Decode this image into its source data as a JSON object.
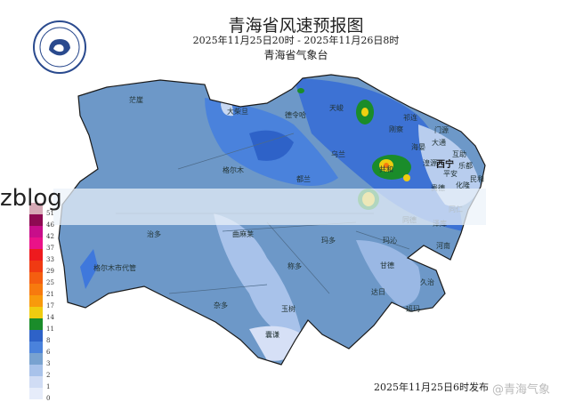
{
  "header": {
    "title": "青海省风速预报图",
    "period": "2025年11月25日20时 - 2025年11月26日8时",
    "organization": "青海省气象台",
    "logo_text": "青海省气象台 1954"
  },
  "places": [
    {
      "name": "茫崖"
    },
    {
      "name": "大柴旦"
    },
    {
      "name": "德令哈"
    },
    {
      "name": "天峻"
    },
    {
      "name": "祁连"
    },
    {
      "name": "门源"
    },
    {
      "name": "刚察"
    },
    {
      "name": "海晏"
    },
    {
      "name": "大通"
    },
    {
      "name": "互助"
    },
    {
      "name": "湟源"
    },
    {
      "name": "西宁"
    },
    {
      "name": "平安"
    },
    {
      "name": "乐都"
    },
    {
      "name": "民和"
    },
    {
      "name": "乌兰"
    },
    {
      "name": "格尔木"
    },
    {
      "name": "都兰"
    },
    {
      "name": "共和"
    },
    {
      "name": "贵德"
    },
    {
      "name": "化隆"
    },
    {
      "name": "同德"
    },
    {
      "name": "泽库"
    },
    {
      "name": "同仁"
    },
    {
      "name": "治多"
    },
    {
      "name": "曲麻莱"
    },
    {
      "name": "玛多"
    },
    {
      "name": "玛沁"
    },
    {
      "name": "河南"
    },
    {
      "name": "甘德"
    },
    {
      "name": "格尔木市代管"
    },
    {
      "name": "称多"
    },
    {
      "name": "杂多"
    },
    {
      "name": "玉树"
    },
    {
      "name": "囊谦"
    },
    {
      "name": "达日"
    },
    {
      "name": "久治"
    },
    {
      "name": "班玛"
    }
  ],
  "legend": {
    "ticks": [
      "51",
      "46",
      "42",
      "37",
      "33",
      "29",
      "25",
      "21",
      "17",
      "14",
      "11",
      "8",
      "6",
      "3",
      "2",
      "1",
      "0"
    ],
    "colors": [
      "#d6aab6",
      "#8e0a52",
      "#c80e8a",
      "#ea1288",
      "#ee1a1e",
      "#f03a12",
      "#f45e10",
      "#f77a0e",
      "#f89a0c",
      "#f0cc10",
      "#1a8c2a",
      "#2e62c8",
      "#4a82dc",
      "#78a2d0",
      "#a8c2ea",
      "#d0dcf4",
      "#e6ecfa"
    ]
  },
  "watermark": {
    "overlay_text": "zblog",
    "weibo": "@青海气象"
  },
  "footer": {
    "issued": "2025年11月25日6时发布"
  }
}
